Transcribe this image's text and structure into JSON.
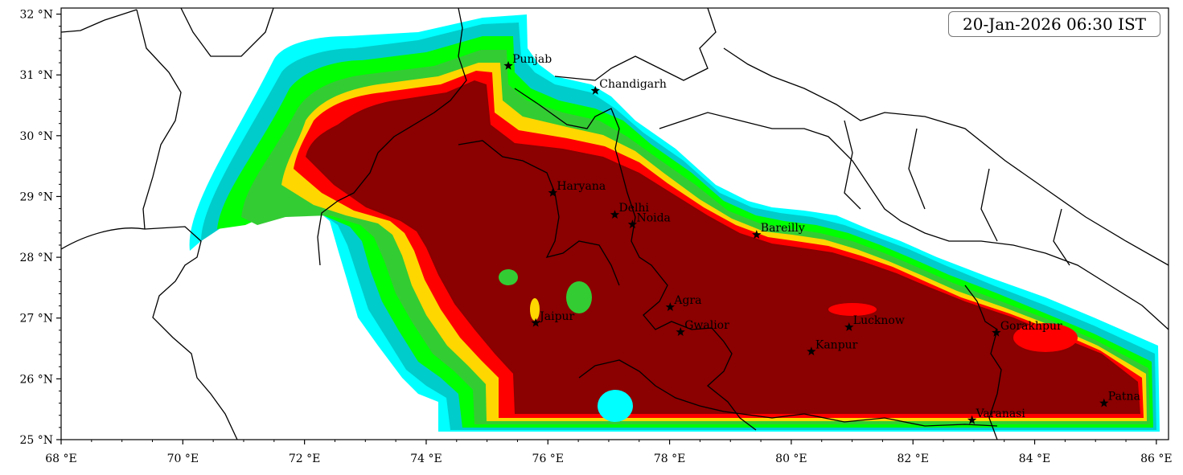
{
  "map": {
    "timestamp": "20-Jan-2026 06:30 IST",
    "lon_range": [
      68,
      86.2
    ],
    "lat_range": [
      25,
      32.1
    ],
    "x_ticks": [
      {
        "value": 68,
        "label": "68 °E"
      },
      {
        "value": 70,
        "label": "70 °E"
      },
      {
        "value": 72,
        "label": "72 °E"
      },
      {
        "value": 74,
        "label": "74 °E"
      },
      {
        "value": 76,
        "label": "76 °E"
      },
      {
        "value": 78,
        "label": "78 °E"
      },
      {
        "value": 80,
        "label": "80 °E"
      },
      {
        "value": 82,
        "label": "82 °E"
      },
      {
        "value": 84,
        "label": "84 °E"
      },
      {
        "value": 86,
        "label": "86 °E"
      }
    ],
    "y_ticks": [
      {
        "value": 25,
        "label": "25 °N"
      },
      {
        "value": 26,
        "label": "26 °N"
      },
      {
        "value": 27,
        "label": "27 °N"
      },
      {
        "value": 28,
        "label": "28 °N"
      },
      {
        "value": 29,
        "label": "29 °N"
      },
      {
        "value": 30,
        "label": "30 °N"
      },
      {
        "value": 31,
        "label": "31 °N"
      },
      {
        "value": 32,
        "label": "32 °N"
      }
    ],
    "cities": [
      {
        "name": "Punjab",
        "lon": 75.35,
        "lat": 31.15
      },
      {
        "name": "Chandigarh",
        "lon": 76.78,
        "lat": 30.74
      },
      {
        "name": "Haryana",
        "lon": 76.08,
        "lat": 29.06
      },
      {
        "name": "Delhi",
        "lon": 77.1,
        "lat": 28.7
      },
      {
        "name": "Noida",
        "lon": 77.39,
        "lat": 28.54
      },
      {
        "name": "Bareilly",
        "lon": 79.43,
        "lat": 28.37
      },
      {
        "name": "Agra",
        "lon": 78.01,
        "lat": 27.18
      },
      {
        "name": "Jaipur",
        "lon": 75.8,
        "lat": 26.92
      },
      {
        "name": "Gwalior",
        "lon": 78.18,
        "lat": 26.77
      },
      {
        "name": "Lucknow",
        "lon": 80.95,
        "lat": 26.85
      },
      {
        "name": "Gorakhpur",
        "lon": 83.37,
        "lat": 26.76
      },
      {
        "name": "Kanpur",
        "lon": 80.33,
        "lat": 26.45
      },
      {
        "name": "Varanasi",
        "lon": 82.97,
        "lat": 25.32
      },
      {
        "name": "Patna",
        "lon": 85.14,
        "lat": 25.6
      }
    ],
    "colors": {
      "level_1": "#00ffff",
      "level_2": "#00cccc",
      "level_3": "#00ff00",
      "level_4": "#33cc33",
      "level_5": "#ffd700",
      "level_6": "#ff0000",
      "level_7": "#8b0000"
    }
  }
}
